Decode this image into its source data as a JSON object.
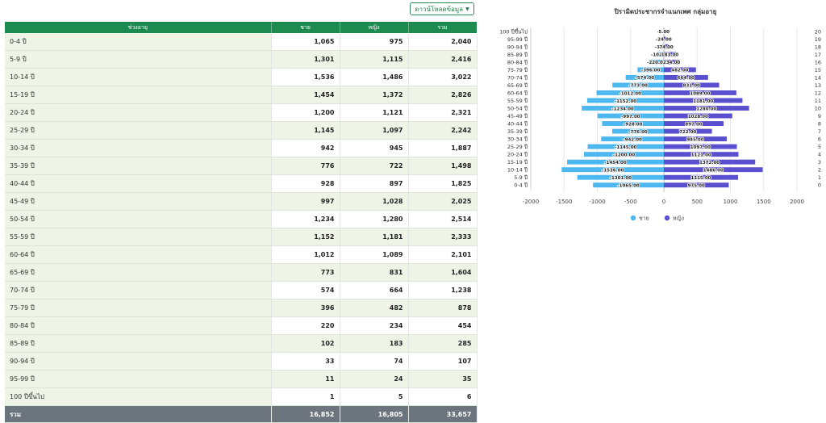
{
  "download_label": "ดาวน์โหลดข้อมูล",
  "table": {
    "headers": [
      "ช่วงอายุ",
      "ชาย",
      "หญิง",
      "รวม"
    ],
    "rows": [
      {
        "age": "0-4 ปี",
        "male": "1,065",
        "female": "975",
        "total": "2,040"
      },
      {
        "age": "5-9 ปี",
        "male": "1,301",
        "female": "1,115",
        "total": "2,416"
      },
      {
        "age": "10-14 ปี",
        "male": "1,536",
        "female": "1,486",
        "total": "3,022"
      },
      {
        "age": "15-19 ปี",
        "male": "1,454",
        "female": "1,372",
        "total": "2,826"
      },
      {
        "age": "20-24 ปี",
        "male": "1,200",
        "female": "1,121",
        "total": "2,321"
      },
      {
        "age": "25-29 ปี",
        "male": "1,145",
        "female": "1,097",
        "total": "2,242"
      },
      {
        "age": "30-34 ปี",
        "male": "942",
        "female": "945",
        "total": "1,887"
      },
      {
        "age": "35-39 ปี",
        "male": "776",
        "female": "722",
        "total": "1,498"
      },
      {
        "age": "40-44 ปี",
        "male": "928",
        "female": "897",
        "total": "1,825"
      },
      {
        "age": "45-49 ปี",
        "male": "997",
        "female": "1,028",
        "total": "2,025"
      },
      {
        "age": "50-54 ปี",
        "male": "1,234",
        "female": "1,280",
        "total": "2,514"
      },
      {
        "age": "55-59 ปี",
        "male": "1,152",
        "female": "1,181",
        "total": "2,333"
      },
      {
        "age": "60-64 ปี",
        "male": "1,012",
        "female": "1,089",
        "total": "2,101"
      },
      {
        "age": "65-69 ปี",
        "male": "773",
        "female": "831",
        "total": "1,604"
      },
      {
        "age": "70-74 ปี",
        "male": "574",
        "female": "664",
        "total": "1,238"
      },
      {
        "age": "75-79 ปี",
        "male": "396",
        "female": "482",
        "total": "878"
      },
      {
        "age": "80-84 ปี",
        "male": "220",
        "female": "234",
        "total": "454"
      },
      {
        "age": "85-89 ปี",
        "male": "102",
        "female": "183",
        "total": "285"
      },
      {
        "age": "90-94 ปี",
        "male": "33",
        "female": "74",
        "total": "107"
      },
      {
        "age": "95-99 ปี",
        "male": "11",
        "female": "24",
        "total": "35"
      },
      {
        "age": "100 ปีขึ้นไป",
        "male": "1",
        "female": "5",
        "total": "6"
      }
    ],
    "total": {
      "age": "รวม",
      "male": "16,852",
      "female": "16,805",
      "total": "33,657"
    }
  },
  "chart_data": {
    "type": "bar",
    "orientation": "horizontal",
    "title": "ปิรามิดประชากรจำแนกเพศ กลุ่มอายุ",
    "categories": [
      "0-4 ปี",
      "5-9 ปี",
      "10-14 ปี",
      "15-19 ปี",
      "20-24 ปี",
      "25-29 ปี",
      "30-34 ปี",
      "35-39 ปี",
      "40-44 ปี",
      "45-49 ปี",
      "50-54 ปี",
      "55-59 ปี",
      "60-64 ปี",
      "65-69 ปี",
      "70-74 ปี",
      "75-79 ปี",
      "80-84 ปี",
      "85-89 ปี",
      "90-94 ปี",
      "95-99 ปี",
      "100 ปีขึ้นไป"
    ],
    "right_axis_labels": [
      "0",
      "1",
      "2",
      "3",
      "4",
      "5",
      "6",
      "7",
      "8",
      "9",
      "10",
      "11",
      "12",
      "13",
      "14",
      "15",
      "16",
      "17",
      "18",
      "19",
      "20"
    ],
    "series": [
      {
        "name": "ชาย",
        "color": "#4db8f0",
        "values": [
          -1065,
          -1301,
          -1536,
          -1454,
          -1200,
          -1145,
          -942,
          -776,
          -928,
          -997,
          -1234,
          -1152,
          -1012,
          -773,
          -574,
          -396,
          -220,
          -102,
          -33,
          -11,
          -1
        ]
      },
      {
        "name": "หญิง",
        "color": "#5a4fcf",
        "values": [
          975,
          1115,
          1486,
          1372,
          1121,
          1097,
          945,
          722,
          897,
          1028,
          1280,
          1181,
          1089,
          831,
          664,
          482,
          234,
          183,
          74,
          24,
          5
        ]
      }
    ],
    "xlim": [
      -2000,
      2000
    ],
    "xticks": [
      -2000,
      -1500,
      -1000,
      -500,
      0,
      500,
      1000,
      1500,
      2000
    ],
    "legend": "bottom"
  }
}
